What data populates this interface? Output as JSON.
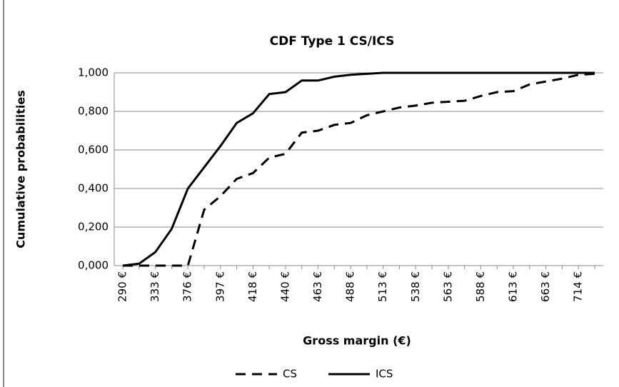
{
  "chart_data": {
    "type": "line",
    "title": "CDF Type 1 CS/ICS",
    "x_label": "Gross margin (€)",
    "y_label": "Cumulative probabilities",
    "categories": [
      "290 €",
      null,
      "333 €",
      null,
      "376 €",
      null,
      "397 €",
      null,
      "418 €",
      null,
      "440 €",
      null,
      "463 €",
      null,
      "488 €",
      null,
      "513 €",
      null,
      "538 €",
      null,
      "563 €",
      null,
      "588 €",
      null,
      "613 €",
      null,
      "663 €",
      null,
      "714 €",
      null
    ],
    "series": [
      {
        "name": "CS",
        "color": "#000000",
        "dash": true,
        "values": [
          0,
          0,
          0,
          0,
          0,
          0.29,
          0.36,
          0.45,
          0.48,
          0.56,
          0.58,
          0.69,
          0.7,
          0.73,
          0.74,
          0.78,
          0.8,
          0.82,
          0.83,
          0.845,
          0.85,
          0.855,
          0.88,
          0.9,
          0.905,
          0.94,
          0.955,
          0.97,
          0.99,
          0.995
        ]
      },
      {
        "name": "ICS",
        "color": "#000000",
        "dash": false,
        "values": [
          0,
          0.01,
          0.07,
          0.19,
          0.4,
          0.51,
          0.62,
          0.74,
          0.79,
          0.89,
          0.9,
          0.96,
          0.96,
          0.98,
          0.99,
          0.995,
          1,
          1,
          1,
          1,
          1,
          1,
          1,
          1,
          1,
          1,
          1,
          1,
          1,
          1
        ]
      }
    ],
    "ylim": [
      0,
      1
    ],
    "yticks": [
      {
        "value": 0,
        "label": "0,000"
      },
      {
        "value": 0.2,
        "label": "0,200"
      },
      {
        "value": 0.4,
        "label": "0,400"
      },
      {
        "value": 0.6,
        "label": "0,600"
      },
      {
        "value": 0.8,
        "label": "0,800"
      },
      {
        "value": 1,
        "label": "1,000"
      }
    ],
    "grid": true,
    "legend": "bottom"
  }
}
